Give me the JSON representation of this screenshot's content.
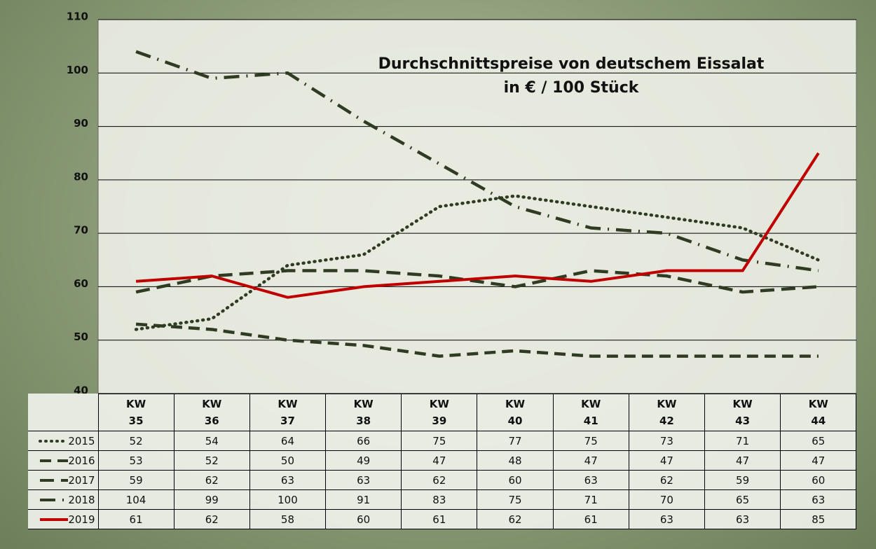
{
  "chart_data": {
    "type": "line",
    "title": "Durchschnittspreise von deutschem Eissalat",
    "subtitle": "in € / 100 Stück",
    "categories": [
      "KW 35",
      "KW 36",
      "KW 37",
      "KW 38",
      "KW 39",
      "KW 40",
      "KW 41",
      "KW 42",
      "KW 43",
      "KW 44"
    ],
    "series": [
      {
        "name": "2015",
        "color": "#2f3b22",
        "dash": "dotted",
        "values": [
          52,
          54,
          64,
          66,
          75,
          77,
          75,
          73,
          71,
          65
        ]
      },
      {
        "name": "2016",
        "color": "#2f3b22",
        "dash": "dashed",
        "values": [
          53,
          52,
          50,
          49,
          47,
          48,
          47,
          47,
          47,
          47
        ]
      },
      {
        "name": "2017",
        "color": "#2f3b22",
        "dash": "long-dash",
        "values": [
          59,
          62,
          63,
          63,
          62,
          60,
          63,
          62,
          59,
          60
        ]
      },
      {
        "name": "2018",
        "color": "#2f3b22",
        "dash": "dash-dot",
        "values": [
          104,
          99,
          100,
          91,
          83,
          75,
          71,
          70,
          65,
          63
        ]
      },
      {
        "name": "2019",
        "color": "#c00000",
        "dash": "solid",
        "values": [
          61,
          62,
          58,
          60,
          61,
          62,
          61,
          63,
          63,
          85
        ]
      }
    ],
    "ylim": [
      40,
      110
    ],
    "yticks": [
      40,
      50,
      60,
      70,
      80,
      90,
      100,
      110
    ],
    "grid": true
  }
}
